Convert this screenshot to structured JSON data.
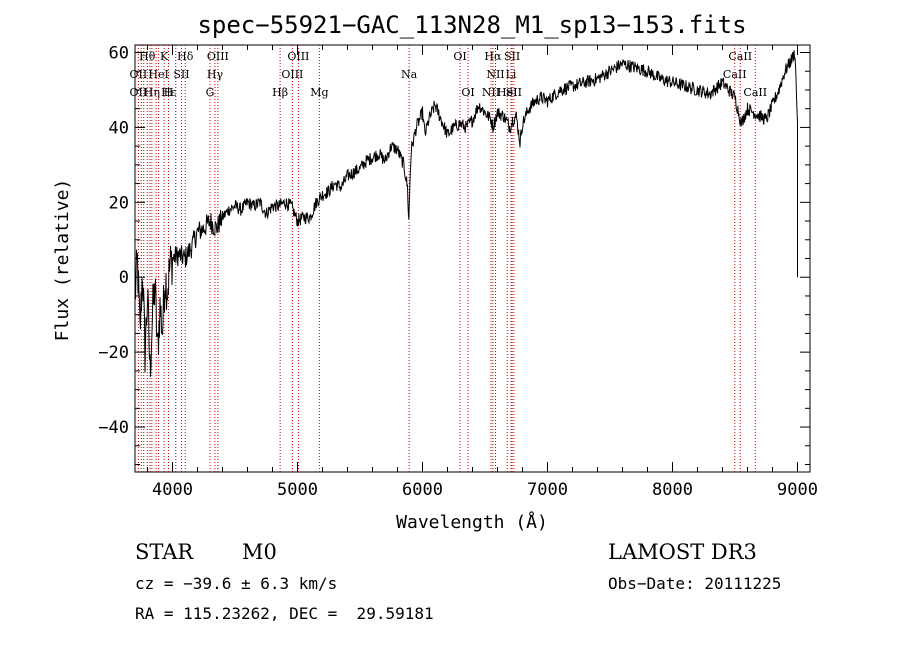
{
  "chart_data": {
    "type": "line",
    "title": "spec−55921−GAC_113N28_M1_sp13−153.fits",
    "xlabel": "Wavelength (Å)",
    "ylabel": "Flux (relative)",
    "xlim": [
      3700,
      9100
    ],
    "ylim": [
      -52,
      62
    ],
    "xticks": [
      4000,
      5000,
      6000,
      7000,
      8000,
      9000
    ],
    "xtick_labels": [
      "4000",
      "5000",
      "6000",
      "7000",
      "8000",
      "9000"
    ],
    "yticks": [
      -40,
      -20,
      0,
      20,
      40,
      60
    ],
    "ytick_labels": [
      "−40",
      "−20",
      "0",
      "20",
      "40",
      "60"
    ],
    "grid": false,
    "colors": {
      "spectrum": "#000000",
      "lines": "#cc0000"
    },
    "series": [
      {
        "x": [
          3700,
          3720,
          3740,
          3760,
          3780,
          3800,
          3820,
          3840,
          3860,
          3880,
          3900,
          3920,
          3940,
          3960,
          3980,
          4000,
          4050,
          4100,
          4150,
          4200,
          4250,
          4300,
          4350,
          4400,
          4450,
          4500,
          4550,
          4600,
          4650,
          4700,
          4750,
          4800,
          4850,
          4900,
          4950,
          5000,
          5050,
          5100,
          5150,
          5200,
          5250,
          5300,
          5350,
          5400,
          5450,
          5500,
          5550,
          5600,
          5650,
          5700,
          5750,
          5800,
          5850,
          5880,
          5890,
          5900,
          5910,
          5930,
          5950,
          6000,
          6020,
          6050,
          6100,
          6150,
          6200,
          6250,
          6300,
          6350,
          6400,
          6450,
          6500,
          6550,
          6563,
          6600,
          6650,
          6700,
          6720,
          6750,
          6780,
          6800,
          6850,
          6900,
          6950,
          7000,
          7100,
          7200,
          7300,
          7400,
          7500,
          7600,
          7700,
          7800,
          7900,
          8000,
          8100,
          8200,
          8300,
          8400,
          8450,
          8500,
          8550,
          8600,
          8650,
          8700,
          8750,
          8800,
          8850,
          8900,
          8950,
          8980,
          9000
        ],
        "y": [
          -5,
          4,
          -15,
          2,
          -20,
          -5,
          -25,
          -10,
          -2,
          -20,
          -8,
          -14,
          0,
          -3,
          3,
          5,
          6,
          5,
          8,
          12,
          13,
          15,
          13,
          16,
          18,
          19,
          18,
          20,
          19,
          20,
          17,
          19,
          19,
          20,
          19,
          15,
          16,
          16,
          20,
          22,
          23,
          25,
          24,
          27,
          28,
          29,
          31,
          32,
          33,
          31,
          35,
          34,
          30,
          24,
          15,
          26,
          34,
          37,
          40,
          44,
          38,
          42,
          46,
          42,
          38,
          40,
          41,
          40,
          42,
          46,
          44,
          42,
          40,
          44,
          43,
          40,
          42,
          43,
          36,
          41,
          45,
          47,
          48,
          47,
          50,
          51,
          52,
          53,
          55,
          57,
          56,
          55,
          53,
          52,
          51,
          50,
          49,
          52,
          50,
          48,
          41,
          45,
          44,
          43,
          42,
          46,
          50,
          55,
          58,
          60,
          41
        ],
        "stroke": "#000000"
      }
    ],
    "lines": [
      {
        "wl": 3727
      },
      {
        "wl": 3750
      },
      {
        "wl": 3770
      },
      {
        "wl": 3798
      },
      {
        "wl": 3820
      },
      {
        "wl": 3835
      },
      {
        "wl": 3869
      },
      {
        "wl": 3889
      },
      {
        "wl": 3933
      },
      {
        "wl": 3968
      },
      {
        "wl": 4026
      },
      {
        "wl": 4072
      },
      {
        "wl": 4102
      },
      {
        "wl": 4300
      },
      {
        "wl": 4340
      },
      {
        "wl": 4363
      },
      {
        "wl": 4861
      },
      {
        "wl": 4959
      },
      {
        "wl": 5007
      },
      {
        "wl": 5175
      },
      {
        "wl": 5893
      },
      {
        "wl": 6300
      },
      {
        "wl": 6364
      },
      {
        "wl": 6548
      },
      {
        "wl": 6563
      },
      {
        "wl": 6584
      },
      {
        "wl": 6678
      },
      {
        "wl": 6708
      },
      {
        "wl": 6717
      },
      {
        "wl": 6731
      },
      {
        "wl": 8498
      },
      {
        "wl": 8542
      },
      {
        "wl": 8662
      }
    ],
    "annotations": [
      {
        "text": "Hθ",
        "wl": 3798,
        "row": 0
      },
      {
        "text": "K",
        "wl": 3933,
        "row": 0
      },
      {
        "text": "Hδ",
        "wl": 4102,
        "row": 0
      },
      {
        "text": "OIII",
        "wl": 4363,
        "row": 0
      },
      {
        "text": "OIII",
        "wl": 5007,
        "row": 0
      },
      {
        "text": "OI",
        "wl": 6300,
        "row": 0
      },
      {
        "text": "Hα",
        "wl": 6563,
        "row": 0
      },
      {
        "text": "SII",
        "wl": 6717,
        "row": 0
      },
      {
        "text": "CaII",
        "wl": 8542,
        "row": 0
      },
      {
        "text": "OII",
        "wl": 3727,
        "row": 1
      },
      {
        "text": "HeI",
        "wl": 3889,
        "row": 1
      },
      {
        "text": "SII",
        "wl": 4072,
        "row": 1
      },
      {
        "text": "Hγ",
        "wl": 4340,
        "row": 1
      },
      {
        "text": "OIII",
        "wl": 4959,
        "row": 1
      },
      {
        "text": "Na",
        "wl": 5893,
        "row": 1
      },
      {
        "text": "NII",
        "wl": 6584,
        "row": 1
      },
      {
        "text": "Li",
        "wl": 6708,
        "row": 1
      },
      {
        "text": "CaII",
        "wl": 8498,
        "row": 1
      },
      {
        "text": "OI",
        "wl": 6364,
        "row": 2
      },
      {
        "text": "Hε",
        "wl": 3970,
        "row": 2
      },
      {
        "text": "OII",
        "wl": 3727,
        "row": 2
      },
      {
        "text": "Hη",
        "wl": 3835,
        "row": 2
      },
      {
        "text": "H",
        "wl": 3968,
        "row": 2
      },
      {
        "text": "G",
        "wl": 4300,
        "row": 2
      },
      {
        "text": "Hβ",
        "wl": 4861,
        "row": 2
      },
      {
        "text": "Mg",
        "wl": 5175,
        "row": 2
      },
      {
        "text": "NII",
        "wl": 6548,
        "row": 2
      },
      {
        "text": "HeI",
        "wl": 6678,
        "row": 2
      },
      {
        "text": "SII",
        "wl": 6731,
        "row": 2
      },
      {
        "text": "CaII",
        "wl": 8662,
        "row": 2
      }
    ]
  },
  "info": {
    "object_class": "STAR",
    "subclass": "M0",
    "survey": "LAMOST DR3",
    "cz": "cz = −39.6 ± 6.3 km/s",
    "obs_date": "Obs−Date: 20111225",
    "radec": "RA = 115.23262, DEC =  29.59181"
  }
}
